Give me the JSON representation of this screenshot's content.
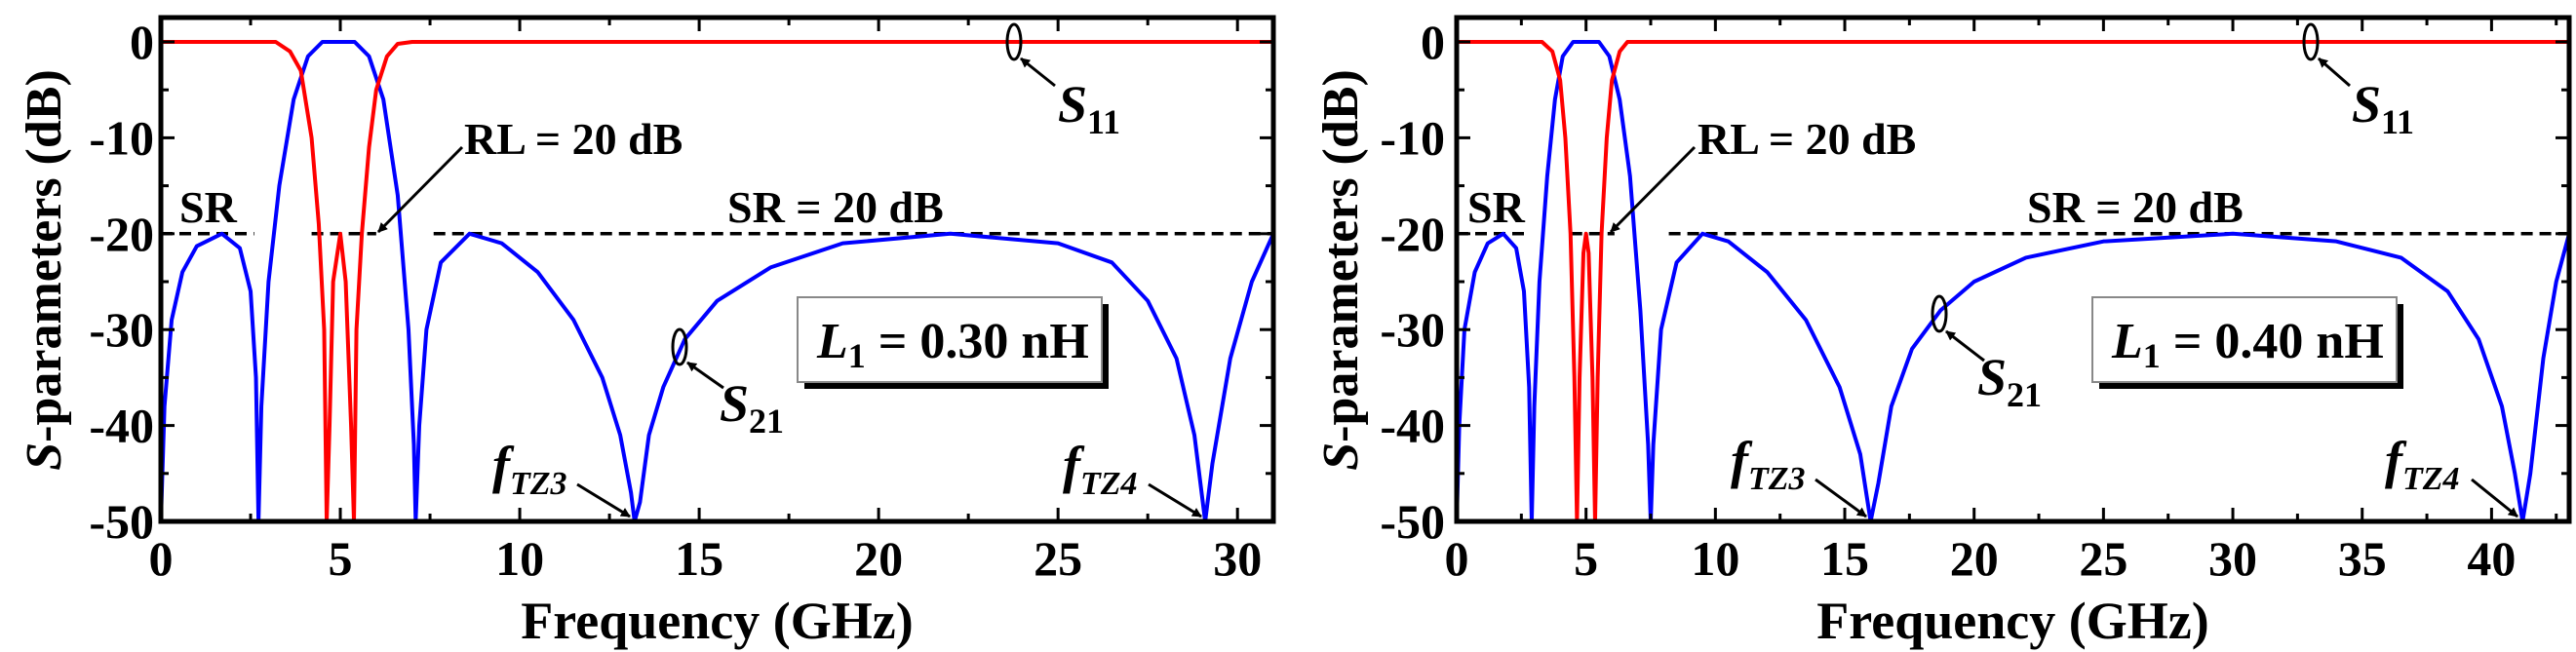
{
  "chart_data": [
    {
      "type": "line",
      "title": "",
      "xlabel": "Frequency (GHz)",
      "ylabel": {
        "italic": "S",
        "rest": "-parameters (dB)"
      },
      "xlim": [
        0,
        31
      ],
      "ylim": [
        -50,
        2.5
      ],
      "xticks": [
        0,
        5,
        10,
        15,
        20,
        25,
        30
      ],
      "yticks": [
        0,
        -10,
        -20,
        -30,
        -40,
        -50
      ],
      "grid": false,
      "colors": {
        "S11": "#ff0000",
        "S21": "#0000ff",
        "reference": "#000000"
      },
      "series": [
        {
          "name": "S21",
          "points": [
            [
              0,
              -50
            ],
            [
              0.1,
              -38
            ],
            [
              0.3,
              -29
            ],
            [
              0.6,
              -24
            ],
            [
              1.0,
              -21.3
            ],
            [
              1.7,
              -20
            ],
            [
              2.2,
              -21.5
            ],
            [
              2.5,
              -26
            ],
            [
              2.65,
              -35
            ],
            [
              2.72,
              -50
            ],
            [
              2.8,
              -38
            ],
            [
              3.0,
              -25
            ],
            [
              3.3,
              -15
            ],
            [
              3.7,
              -6
            ],
            [
              4.1,
              -1.5
            ],
            [
              4.5,
              0
            ],
            [
              5.4,
              0
            ],
            [
              5.8,
              -1.5
            ],
            [
              6.2,
              -6
            ],
            [
              6.6,
              -16
            ],
            [
              6.9,
              -30
            ],
            [
              7.05,
              -42
            ],
            [
              7.1,
              -50
            ],
            [
              7.2,
              -40
            ],
            [
              7.4,
              -30
            ],
            [
              7.8,
              -23
            ],
            [
              8.6,
              -20
            ],
            [
              9.5,
              -21
            ],
            [
              10.5,
              -24
            ],
            [
              11.5,
              -29
            ],
            [
              12.3,
              -35
            ],
            [
              12.8,
              -41
            ],
            [
              13.1,
              -47
            ],
            [
              13.2,
              -50
            ],
            [
              13.35,
              -48
            ],
            [
              13.6,
              -41
            ],
            [
              14.0,
              -36
            ],
            [
              14.6,
              -31
            ],
            [
              15.5,
              -27
            ],
            [
              17,
              -23.5
            ],
            [
              19,
              -21
            ],
            [
              22,
              -20
            ],
            [
              25,
              -21
            ],
            [
              26.5,
              -23
            ],
            [
              27.5,
              -27
            ],
            [
              28.3,
              -33
            ],
            [
              28.8,
              -41
            ],
            [
              29.1,
              -50
            ],
            [
              29.3,
              -44
            ],
            [
              29.8,
              -33
            ],
            [
              30.4,
              -25
            ],
            [
              31,
              -20
            ]
          ]
        },
        {
          "name": "S11",
          "points": [
            [
              0,
              0
            ],
            [
              3.2,
              0
            ],
            [
              3.6,
              -1
            ],
            [
              3.9,
              -3
            ],
            [
              4.2,
              -10
            ],
            [
              4.4,
              -19
            ],
            [
              4.55,
              -30
            ],
            [
              4.62,
              -50
            ],
            [
              4.7,
              -40
            ],
            [
              4.8,
              -25
            ],
            [
              5.0,
              -20
            ],
            [
              5.15,
              -25
            ],
            [
              5.3,
              -40
            ],
            [
              5.38,
              -50
            ],
            [
              5.45,
              -30
            ],
            [
              5.6,
              -20
            ],
            [
              5.8,
              -11
            ],
            [
              6.0,
              -5
            ],
            [
              6.3,
              -1.5
            ],
            [
              6.6,
              -0.2
            ],
            [
              7,
              0
            ],
            [
              31,
              0
            ]
          ]
        }
      ],
      "reference_line": {
        "y": -20,
        "segments": [
          [
            0,
            2.6
          ],
          [
            4.2,
            6.0
          ],
          [
            7.6,
            31
          ]
        ]
      },
      "annotations": {
        "sr_short": "SR",
        "rl": "RL = 20 dB",
        "sr": "SR = 20 dB",
        "s11": {
          "main": "S",
          "sub": "11"
        },
        "s21": {
          "main": "S",
          "sub": "21"
        },
        "param": {
          "main": "L",
          "sub": "1",
          "rest": " = 0.30 nH"
        },
        "ftz3": {
          "main": "f",
          "sub": "TZ3"
        },
        "ftz4": {
          "main": "f",
          "sub": "TZ4"
        }
      }
    },
    {
      "type": "line",
      "title": "",
      "xlabel": "Frequency (GHz)",
      "ylabel": {
        "italic": "S",
        "rest": "-parameters (dB)"
      },
      "xlim": [
        0,
        43
      ],
      "ylim": [
        -50,
        2.5
      ],
      "xticks": [
        0,
        5,
        10,
        15,
        20,
        25,
        30,
        35,
        40
      ],
      "yticks": [
        0,
        -10,
        -20,
        -30,
        -40,
        -50
      ],
      "grid": false,
      "colors": {
        "S11": "#ff0000",
        "S21": "#0000ff",
        "reference": "#000000"
      },
      "series": [
        {
          "name": "S21",
          "points": [
            [
              0,
              -50
            ],
            [
              0.1,
              -40
            ],
            [
              0.3,
              -30
            ],
            [
              0.7,
              -24
            ],
            [
              1.2,
              -21
            ],
            [
              1.8,
              -20
            ],
            [
              2.3,
              -21.5
            ],
            [
              2.6,
              -26
            ],
            [
              2.8,
              -36
            ],
            [
              2.9,
              -50
            ],
            [
              3.0,
              -38
            ],
            [
              3.2,
              -25
            ],
            [
              3.5,
              -14
            ],
            [
              3.8,
              -6
            ],
            [
              4.1,
              -1.5
            ],
            [
              4.5,
              0
            ],
            [
              5.5,
              0
            ],
            [
              5.9,
              -1.5
            ],
            [
              6.3,
              -6
            ],
            [
              6.7,
              -14
            ],
            [
              7.1,
              -28
            ],
            [
              7.4,
              -42
            ],
            [
              7.5,
              -50
            ],
            [
              7.6,
              -42
            ],
            [
              7.9,
              -30
            ],
            [
              8.5,
              -23
            ],
            [
              9.5,
              -20
            ],
            [
              10.5,
              -20.8
            ],
            [
              12,
              -24
            ],
            [
              13.5,
              -29
            ],
            [
              14.8,
              -36
            ],
            [
              15.6,
              -43
            ],
            [
              16,
              -50
            ],
            [
              16.3,
              -46
            ],
            [
              16.8,
              -38
            ],
            [
              17.6,
              -32
            ],
            [
              18.7,
              -28
            ],
            [
              20,
              -25
            ],
            [
              22,
              -22.5
            ],
            [
              25,
              -20.8
            ],
            [
              30,
              -20
            ],
            [
              34,
              -20.8
            ],
            [
              36.5,
              -22.5
            ],
            [
              38.3,
              -26
            ],
            [
              39.5,
              -31
            ],
            [
              40.4,
              -38
            ],
            [
              40.9,
              -45
            ],
            [
              41.2,
              -50
            ],
            [
              41.5,
              -45
            ],
            [
              42,
              -33
            ],
            [
              42.5,
              -25
            ],
            [
              43,
              -20
            ]
          ]
        },
        {
          "name": "S11",
          "points": [
            [
              0,
              0
            ],
            [
              3.3,
              0
            ],
            [
              3.7,
              -1
            ],
            [
              4.0,
              -4
            ],
            [
              4.2,
              -10
            ],
            [
              4.4,
              -20
            ],
            [
              4.55,
              -35
            ],
            [
              4.65,
              -50
            ],
            [
              4.75,
              -35
            ],
            [
              4.9,
              -22
            ],
            [
              5.0,
              -20
            ],
            [
              5.1,
              -22
            ],
            [
              5.25,
              -35
            ],
            [
              5.35,
              -50
            ],
            [
              5.45,
              -35
            ],
            [
              5.6,
              -20
            ],
            [
              5.8,
              -10
            ],
            [
              6.0,
              -4
            ],
            [
              6.3,
              -1
            ],
            [
              6.6,
              0
            ],
            [
              43,
              0
            ]
          ]
        }
      ],
      "reference_line": {
        "y": -20,
        "segments": [
          [
            0,
            2.8
          ],
          [
            4.4,
            6.1
          ],
          [
            8.2,
            43
          ]
        ]
      },
      "annotations": {
        "sr_short": "SR",
        "rl": "RL = 20 dB",
        "sr": "SR = 20 dB",
        "s11": {
          "main": "S",
          "sub": "11"
        },
        "s21": {
          "main": "S",
          "sub": "21"
        },
        "param": {
          "main": "L",
          "sub": "1",
          "rest": " = 0.40 nH"
        },
        "ftz3": {
          "main": "f",
          "sub": "TZ3"
        },
        "ftz4": {
          "main": "f",
          "sub": "TZ4"
        }
      }
    }
  ]
}
